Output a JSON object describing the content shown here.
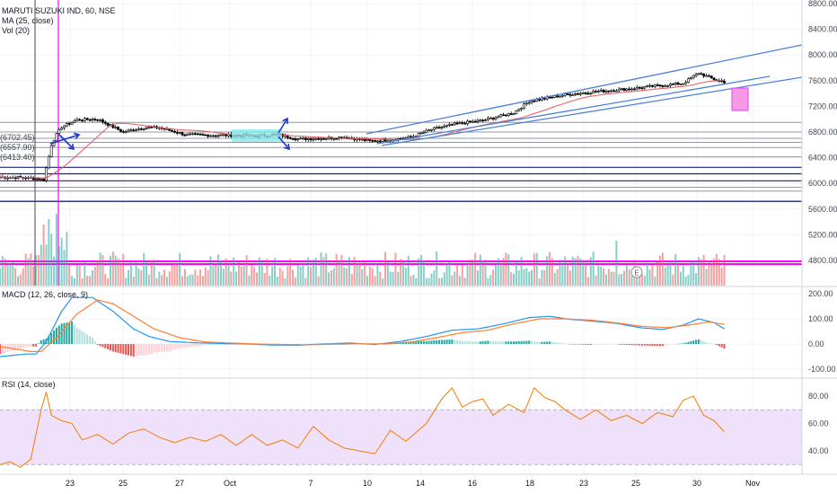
{
  "header": {
    "symbol": "MARUTI SUZUKI IND, 60, NSE",
    "ma_label": "MA (25, close)",
    "vol_label": "Vol (20)"
  },
  "level_labels": [
    "(6702.45)",
    "(6557.90)",
    "(6413.40)"
  ],
  "event_marker": "E",
  "panes": {
    "macd_title": "MACD (12, 26, close, 9)",
    "rsi_title": "RSI (14, close)"
  },
  "colors": {
    "up": "#26a69a",
    "down": "#ef5350",
    "channel": "#4a80d8",
    "magenta": "#ff00ff",
    "macd": "#2196f3",
    "signal": "#ff7f32",
    "rsi": "#f57c00",
    "rsi_band": "#efe1fb",
    "navy_line": "#1a237e",
    "purple_line": "#6a1b9a",
    "highlight": "#7fe9ec",
    "arrow": "#1a36d0",
    "target_box": "#f79ae6"
  },
  "chart_data": [
    {
      "type": "candlestick",
      "title": "MARUTI SUZUKI IND, 60, NSE",
      "series": [
        {
          "name": "MA (25, close)"
        }
      ],
      "x_ticks": [
        "23",
        "25",
        "27",
        "Oct",
        "7",
        "10",
        "14",
        "16",
        "18",
        "23",
        "25",
        "30",
        "Nov"
      ],
      "y_ticks": [
        "8800.00",
        "8400.00",
        "8000.00",
        "7600.00",
        "7200.00",
        "6800.00",
        "6400.00",
        "6000.00",
        "5600.00",
        "5200.00",
        "4800.00"
      ],
      "ylim": [
        4650,
        8800
      ],
      "horizontal_levels": [
        6950,
        6800,
        6702.45,
        6640,
        6557.9,
        6413.4,
        6250,
        6150,
        6040,
        5940,
        5880,
        5720,
        4800,
        4760
      ],
      "approx_close_path": [
        [
          0,
          6100
        ],
        [
          10,
          6090
        ],
        [
          17,
          6060
        ],
        [
          20,
          6600
        ],
        [
          22,
          6760
        ],
        [
          24,
          6880
        ],
        [
          30,
          6990
        ],
        [
          38,
          7000
        ],
        [
          48,
          6800
        ],
        [
          56,
          6870
        ],
        [
          62,
          6870
        ],
        [
          72,
          6760
        ],
        [
          82,
          6750
        ],
        [
          88,
          6750
        ],
        [
          100,
          6740
        ],
        [
          108,
          6760
        ],
        [
          116,
          6690
        ],
        [
          124,
          6700
        ],
        [
          134,
          6720
        ],
        [
          144,
          6660
        ],
        [
          152,
          6680
        ],
        [
          160,
          6720
        ],
        [
          168,
          6840
        ],
        [
          178,
          6930
        ],
        [
          188,
          6980
        ],
        [
          200,
          7100
        ],
        [
          206,
          7280
        ],
        [
          220,
          7380
        ],
        [
          232,
          7430
        ],
        [
          244,
          7470
        ],
        [
          256,
          7520
        ],
        [
          266,
          7560
        ],
        [
          272,
          7720
        ],
        [
          278,
          7620
        ],
        [
          282,
          7580
        ]
      ]
    },
    {
      "type": "bar",
      "title": "Vol (20)",
      "note": "volume histogram at the bottom of the price pane"
    },
    {
      "type": "line",
      "title": "MACD (12, 26, close, 9)",
      "y_ticks": [
        "200.00",
        "100.00",
        "0.00",
        "-100.00"
      ],
      "ylim": [
        -100,
        200
      ],
      "macd": [
        [
          0,
          -50
        ],
        [
          10,
          -40
        ],
        [
          14,
          -40
        ],
        [
          18,
          10
        ],
        [
          24,
          130
        ],
        [
          28,
          185
        ],
        [
          36,
          185
        ],
        [
          44,
          130
        ],
        [
          52,
          60
        ],
        [
          58,
          30
        ],
        [
          66,
          10
        ],
        [
          76,
          5
        ],
        [
          86,
          2
        ],
        [
          96,
          0
        ],
        [
          106,
          -4
        ],
        [
          116,
          -5
        ],
        [
          126,
          0
        ],
        [
          136,
          4
        ],
        [
          146,
          -2
        ],
        [
          156,
          10
        ],
        [
          166,
          30
        ],
        [
          176,
          55
        ],
        [
          186,
          60
        ],
        [
          196,
          80
        ],
        [
          206,
          105
        ],
        [
          214,
          110
        ],
        [
          222,
          98
        ],
        [
          232,
          90
        ],
        [
          240,
          82
        ],
        [
          250,
          64
        ],
        [
          258,
          58
        ],
        [
          266,
          75
        ],
        [
          272,
          100
        ],
        [
          278,
          85
        ],
        [
          282,
          60
        ]
      ],
      "signal": [
        [
          0,
          -10
        ],
        [
          12,
          -30
        ],
        [
          16,
          -30
        ],
        [
          22,
          25
        ],
        [
          30,
          120
        ],
        [
          38,
          175
        ],
        [
          44,
          160
        ],
        [
          52,
          110
        ],
        [
          60,
          60
        ],
        [
          70,
          25
        ],
        [
          80,
          8
        ],
        [
          90,
          4
        ],
        [
          100,
          0
        ],
        [
          110,
          -2
        ],
        [
          120,
          -3
        ],
        [
          130,
          -1
        ],
        [
          140,
          1
        ],
        [
          150,
          0
        ],
        [
          160,
          8
        ],
        [
          170,
          25
        ],
        [
          180,
          45
        ],
        [
          190,
          55
        ],
        [
          200,
          80
        ],
        [
          210,
          100
        ],
        [
          220,
          100
        ],
        [
          230,
          95
        ],
        [
          240,
          84
        ],
        [
          250,
          70
        ],
        [
          260,
          65
        ],
        [
          268,
          75
        ],
        [
          276,
          88
        ],
        [
          282,
          78
        ]
      ]
    },
    {
      "type": "line",
      "title": "RSI (14, close)",
      "y_ticks": [
        "80.00",
        "60.00",
        "40.00"
      ],
      "ylim": [
        25,
        92
      ],
      "band": [
        30,
        70
      ],
      "rsi": [
        [
          0,
          30
        ],
        [
          4,
          32
        ],
        [
          8,
          28
        ],
        [
          12,
          34
        ],
        [
          16,
          70
        ],
        [
          18,
          83
        ],
        [
          20,
          66
        ],
        [
          24,
          62
        ],
        [
          28,
          60
        ],
        [
          32,
          48
        ],
        [
          38,
          52
        ],
        [
          44,
          45
        ],
        [
          50,
          53
        ],
        [
          56,
          56
        ],
        [
          62,
          50
        ],
        [
          68,
          46
        ],
        [
          74,
          50
        ],
        [
          80,
          47
        ],
        [
          86,
          52
        ],
        [
          92,
          44
        ],
        [
          98,
          52
        ],
        [
          104,
          44
        ],
        [
          110,
          48
        ],
        [
          116,
          42
        ],
        [
          122,
          58
        ],
        [
          128,
          48
        ],
        [
          134,
          42
        ],
        [
          140,
          40
        ],
        [
          146,
          38
        ],
        [
          152,
          55
        ],
        [
          158,
          47
        ],
        [
          166,
          60
        ],
        [
          172,
          78
        ],
        [
          176,
          86
        ],
        [
          180,
          72
        ],
        [
          184,
          76
        ],
        [
          188,
          78
        ],
        [
          192,
          66
        ],
        [
          198,
          74
        ],
        [
          204,
          68
        ],
        [
          208,
          86
        ],
        [
          212,
          79
        ],
        [
          216,
          76
        ],
        [
          220,
          70
        ],
        [
          226,
          63
        ],
        [
          232,
          70
        ],
        [
          238,
          62
        ],
        [
          244,
          66
        ],
        [
          250,
          60
        ],
        [
          256,
          68
        ],
        [
          262,
          65
        ],
        [
          266,
          77
        ],
        [
          270,
          80
        ],
        [
          274,
          66
        ],
        [
          278,
          62
        ],
        [
          282,
          54
        ]
      ]
    }
  ]
}
